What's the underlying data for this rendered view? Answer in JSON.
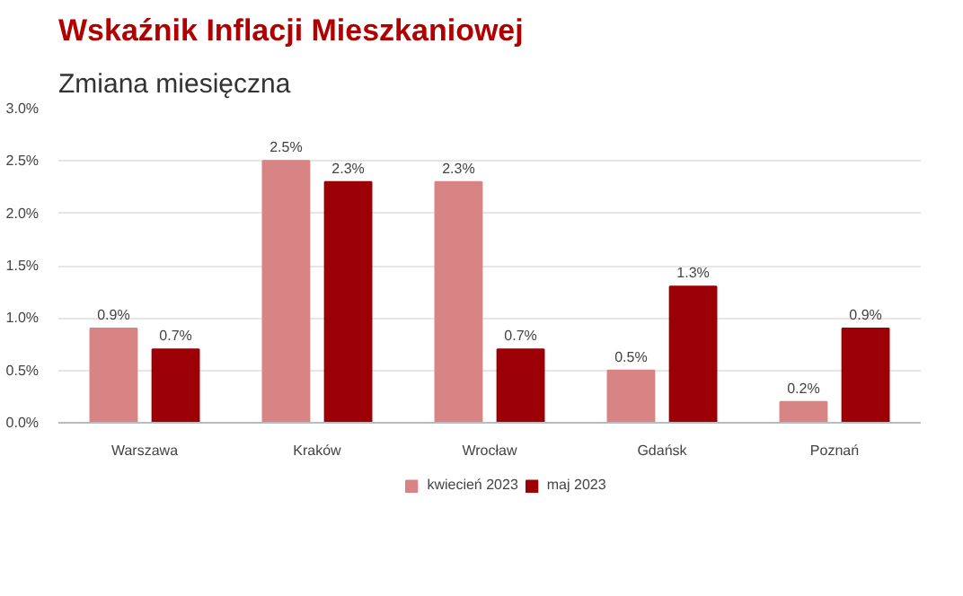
{
  "chart_data": {
    "type": "bar",
    "title": "Wskaźnik Inflacji Mieszkaniowej",
    "subtitle": "Zmiana miesięczna",
    "categories": [
      "Warszawa",
      "Kraków",
      "Wrocław",
      "Gdańsk",
      "Poznań"
    ],
    "series": [
      {
        "name": "kwiecień 2023",
        "color": "#d98484",
        "values": [
          0.9,
          2.5,
          2.3,
          0.5,
          0.2
        ],
        "value_labels": [
          "0.9%",
          "2.5%",
          "2.3%",
          "0.5%",
          "0.2%"
        ]
      },
      {
        "name": "maj 2023",
        "color": "#9c0006",
        "values": [
          0.7,
          2.3,
          0.7,
          1.3,
          0.9
        ],
        "value_labels": [
          "0.7%",
          "2.3%",
          "0.7%",
          "1.3%",
          "0.9%"
        ]
      }
    ],
    "ylim": [
      0,
      3.0
    ],
    "yticks": [
      {
        "value": 0,
        "label": "0.0%"
      },
      {
        "value": 0.5,
        "label": "0.5%"
      },
      {
        "value": 1.0,
        "label": "1.0%"
      },
      {
        "value": 1.5,
        "label": "1.5%"
      },
      {
        "value": 2.0,
        "label": "2.0%"
      },
      {
        "value": 2.5,
        "label": "2.5%"
      },
      {
        "value": 3.0,
        "label": "3.0%"
      }
    ],
    "grid": "y",
    "legend": "bottom"
  }
}
